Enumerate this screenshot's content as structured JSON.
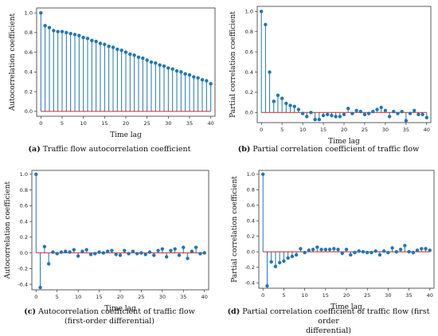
{
  "colors": {
    "stem": "#1f77b4",
    "baseline": "#d62728",
    "marker": "#1f77b4",
    "axis": "#333333"
  },
  "chart_data": [
    {
      "id": "a",
      "type": "stem",
      "xlabel": "Time lag",
      "ylabel": "Autocorrelation coefficient",
      "xlim": [
        -1,
        41
      ],
      "ylim": [
        -0.05,
        1.05
      ],
      "xticks": [
        0,
        5,
        10,
        15,
        20,
        25,
        30,
        35,
        40
      ],
      "yticks": [
        0.0,
        0.2,
        0.4,
        0.6,
        0.8,
        1.0
      ],
      "ytick_labels": [
        "0.0",
        "0.2",
        "0.4",
        "0.6",
        "0.8",
        "1.0"
      ],
      "x": [
        0,
        1,
        2,
        3,
        4,
        5,
        6,
        7,
        8,
        9,
        10,
        11,
        12,
        13,
        14,
        15,
        16,
        17,
        18,
        19,
        20,
        21,
        22,
        23,
        24,
        25,
        26,
        27,
        28,
        29,
        30,
        31,
        32,
        33,
        34,
        35,
        36,
        37,
        38,
        39,
        40
      ],
      "values": [
        1.0,
        0.87,
        0.85,
        0.82,
        0.81,
        0.81,
        0.8,
        0.79,
        0.78,
        0.77,
        0.75,
        0.74,
        0.72,
        0.71,
        0.69,
        0.68,
        0.66,
        0.65,
        0.63,
        0.62,
        0.6,
        0.58,
        0.57,
        0.55,
        0.54,
        0.52,
        0.5,
        0.49,
        0.47,
        0.46,
        0.44,
        0.43,
        0.41,
        0.4,
        0.38,
        0.37,
        0.35,
        0.34,
        0.32,
        0.31,
        0.28
      ],
      "caption_letter": "(a)",
      "caption_text": " Traffic flow autocorrelation coefficient"
    },
    {
      "id": "b",
      "type": "stem",
      "xlabel": "Time lag",
      "ylabel": "Partial correlation coefficient",
      "xlim": [
        -1,
        41
      ],
      "ylim": [
        -0.1,
        1.05
      ],
      "xticks": [
        0,
        5,
        10,
        15,
        20,
        25,
        30,
        35,
        40
      ],
      "yticks": [
        0.0,
        0.2,
        0.4,
        0.6,
        0.8,
        1.0
      ],
      "ytick_labels": [
        "0.0",
        "0.2",
        "0.4",
        "0.6",
        "0.8",
        "1.0"
      ],
      "x": [
        0,
        1,
        2,
        3,
        4,
        5,
        6,
        7,
        8,
        9,
        10,
        11,
        12,
        13,
        14,
        15,
        16,
        17,
        18,
        19,
        20,
        21,
        22,
        23,
        24,
        25,
        26,
        27,
        28,
        29,
        30,
        31,
        32,
        33,
        34,
        35,
        36,
        37,
        38,
        39,
        40
      ],
      "values": [
        1.0,
        0.87,
        0.4,
        0.11,
        0.17,
        0.14,
        0.09,
        0.07,
        0.06,
        0.03,
        -0.01,
        -0.04,
        0.0,
        -0.07,
        -0.07,
        -0.03,
        -0.02,
        -0.03,
        -0.04,
        -0.04,
        -0.02,
        0.04,
        -0.01,
        0.02,
        0.01,
        -0.02,
        -0.01,
        0.01,
        0.03,
        0.05,
        0.02,
        -0.04,
        0.01,
        -0.01,
        0.01,
        -0.08,
        -0.01,
        0.02,
        -0.02,
        -0.02,
        -0.05
      ],
      "caption_letter": "(b)",
      "caption_text": " Partial correlation coefficient of traffic flow"
    },
    {
      "id": "c",
      "type": "stem",
      "xlabel": "Time lag",
      "ylabel": "Autocorrelation coefficient",
      "xlim": [
        -1,
        41
      ],
      "ylim": [
        -0.47,
        1.05
      ],
      "xticks": [
        0,
        5,
        10,
        15,
        20,
        25,
        30,
        35,
        40
      ],
      "yticks": [
        -0.4,
        -0.2,
        0.0,
        0.2,
        0.4,
        0.6,
        0.8,
        1.0
      ],
      "ytick_labels": [
        "-0.4",
        "-0.2",
        "0.0",
        "0.2",
        "0.4",
        "0.6",
        "0.8",
        "1.0"
      ],
      "x": [
        0,
        1,
        2,
        3,
        4,
        5,
        6,
        7,
        8,
        9,
        10,
        11,
        12,
        13,
        14,
        15,
        16,
        17,
        18,
        19,
        20,
        21,
        22,
        23,
        24,
        25,
        26,
        27,
        28,
        29,
        30,
        31,
        32,
        33,
        34,
        35,
        36,
        37,
        38,
        39,
        40
      ],
      "values": [
        1.0,
        -0.44,
        0.08,
        -0.14,
        0.01,
        -0.01,
        0.01,
        0.02,
        0.01,
        0.04,
        -0.04,
        0.02,
        0.04,
        -0.02,
        -0.01,
        0.01,
        0.0,
        0.02,
        0.03,
        -0.02,
        -0.03,
        0.03,
        -0.01,
        0.02,
        -0.01,
        0.0,
        -0.02,
        0.01,
        -0.03,
        0.03,
        0.05,
        -0.05,
        0.03,
        0.05,
        -0.03,
        0.07,
        -0.07,
        0.02,
        0.07,
        -0.01,
        0.0
      ],
      "caption_letter": "(c)",
      "caption_text": " Autocorrelation coefficient of traffic flow",
      "caption_text_2": "(first-order differential)"
    },
    {
      "id": "d",
      "type": "stem",
      "xlabel": "Time lag",
      "ylabel": "Partial correlation coefficient",
      "xlim": [
        -1,
        41
      ],
      "ylim": [
        -0.47,
        1.05
      ],
      "xticks": [
        0,
        5,
        10,
        15,
        20,
        25,
        30,
        35,
        40
      ],
      "yticks": [
        -0.4,
        -0.2,
        0.0,
        0.2,
        0.4,
        0.6,
        0.8,
        1.0
      ],
      "ytick_labels": [
        "-0.4",
        "-0.2",
        "0.0",
        "0.2",
        "0.4",
        "0.6",
        "0.8",
        "1.0"
      ],
      "x": [
        0,
        1,
        2,
        3,
        4,
        5,
        6,
        7,
        8,
        9,
        10,
        11,
        12,
        13,
        14,
        15,
        16,
        17,
        18,
        19,
        20,
        21,
        22,
        23,
        24,
        25,
        26,
        27,
        28,
        29,
        30,
        31,
        32,
        33,
        34,
        35,
        36,
        37,
        38,
        39,
        40
      ],
      "values": [
        1.0,
        -0.44,
        -0.13,
        -0.19,
        -0.14,
        -0.12,
        -0.08,
        -0.06,
        -0.04,
        0.04,
        -0.01,
        0.02,
        0.03,
        0.06,
        0.03,
        0.03,
        0.03,
        0.04,
        0.03,
        -0.02,
        0.03,
        -0.04,
        -0.01,
        0.01,
        0.0,
        -0.01,
        -0.01,
        0.01,
        -0.04,
        0.01,
        -0.01,
        0.05,
        0.0,
        0.03,
        0.08,
        0.0,
        -0.01,
        0.02,
        0.04,
        0.04,
        0.02
      ],
      "caption_letter": "(d)",
      "caption_text": " Partial correlation coefficient of traffic flow (first order",
      "caption_text_2": "differential)"
    }
  ]
}
